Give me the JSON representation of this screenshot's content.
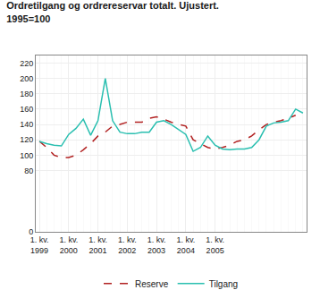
{
  "chart_data": {
    "type": "line",
    "title": "Ordretilgang og ordrereservar totalt. Ujustert.",
    "subtitle": "1995=100",
    "categories": [
      "1. kv.\n1999",
      null,
      null,
      null,
      "1. kv.\n2000",
      null,
      null,
      null,
      "1. kv.\n2001",
      null,
      null,
      null,
      "1. kv.\n2002",
      null,
      null,
      null,
      "1. kv.\n2003",
      null,
      null,
      null,
      "1. kv.\n2004",
      null,
      null,
      null,
      "1. kv.\n2005",
      null,
      null,
      null,
      null,
      null,
      null,
      null,
      null,
      null,
      null,
      null,
      null
    ],
    "series": [
      {
        "name": "Reserve",
        "color": "#b22222",
        "line_style": "dashed",
        "values": [
          118,
          110,
          100,
          97,
          97,
          100,
          107,
          115,
          125,
          130,
          138,
          140,
          143,
          143,
          143,
          148,
          150,
          147,
          143,
          140,
          138,
          120,
          115,
          110,
          108,
          110,
          113,
          118,
          120,
          125,
          133,
          140,
          143,
          145,
          148,
          152,
          null
        ]
      },
      {
        "name": "Tilgang",
        "color": "#2abfb0",
        "line_style": "solid",
        "values": [
          118,
          115,
          113,
          112,
          127,
          135,
          147,
          126,
          145,
          200,
          145,
          130,
          128,
          128,
          130,
          130,
          143,
          145,
          140,
          133,
          127,
          105,
          110,
          125,
          113,
          108,
          107,
          108,
          108,
          110,
          120,
          138,
          142,
          143,
          145,
          160,
          155
        ]
      }
    ],
    "ylim": [
      0,
      230
    ],
    "yticks": [
      0,
      80,
      100,
      120,
      140,
      160,
      180,
      200,
      220
    ],
    "grid": true,
    "legend": "bottom"
  }
}
